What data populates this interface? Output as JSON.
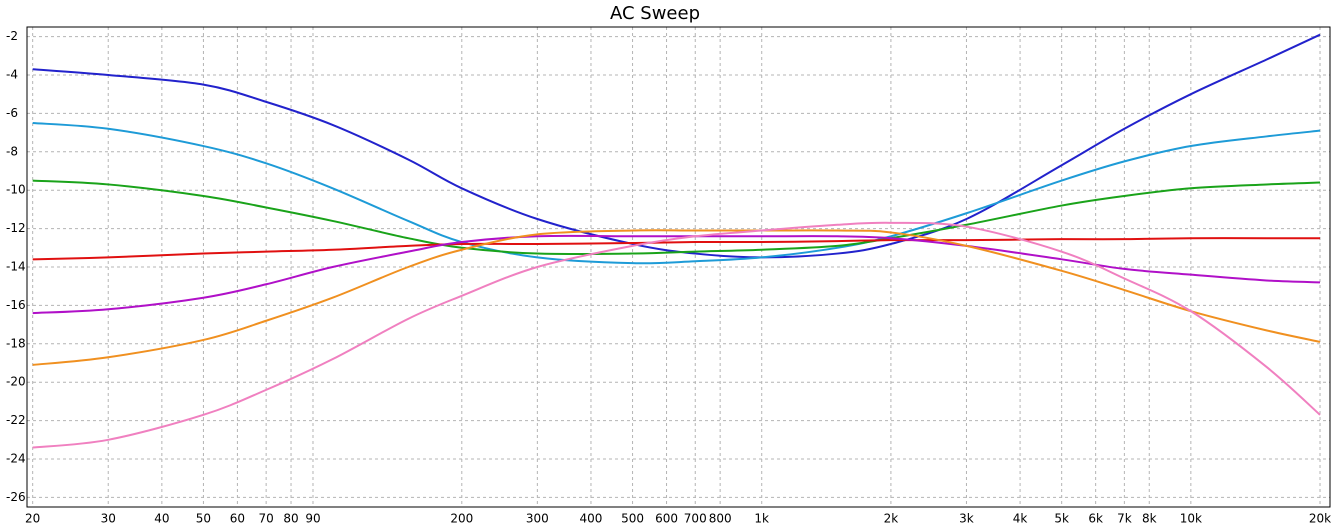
{
  "chart_data": {
    "type": "line",
    "title": "AC Sweep",
    "log_x": true,
    "grid": true,
    "xlim": [
      19.4,
      21100
    ],
    "ylim": [
      -26.5,
      -1.5
    ],
    "xticks": [
      20,
      30,
      40,
      50,
      60,
      70,
      80,
      90,
      200,
      300,
      400,
      500,
      600,
      700,
      800,
      {
        "value": 1000,
        "label": "1k"
      },
      {
        "value": 2000,
        "label": "2k"
      },
      {
        "value": 3000,
        "label": "3k"
      },
      {
        "value": 4000,
        "label": "4k"
      },
      {
        "value": 5000,
        "label": "5k"
      },
      {
        "value": 6000,
        "label": "6k"
      },
      {
        "value": 7000,
        "label": "7k"
      },
      {
        "value": 8000,
        "label": "8k"
      },
      {
        "value": 10000,
        "label": "10k"
      },
      {
        "value": 20000,
        "label": "20k"
      }
    ],
    "yticks": [
      -2,
      -4,
      -6,
      -8,
      -10,
      -12,
      -14,
      -16,
      -18,
      -20,
      -22,
      -24,
      -26
    ],
    "x": [
      20,
      30,
      50,
      70,
      100,
      150,
      200,
      300,
      500,
      700,
      1000,
      1500,
      2000,
      3000,
      5000,
      7000,
      10000,
      15000,
      20000
    ],
    "series": [
      {
        "color": "#2222cc",
        "values": [
          -3.7,
          -4.0,
          -4.5,
          -5.4,
          -6.6,
          -8.4,
          -9.9,
          -11.5,
          -12.8,
          -13.3,
          -13.5,
          -13.3,
          -12.8,
          -11.5,
          -8.7,
          -6.8,
          -5.0,
          -3.2,
          -1.9
        ]
      },
      {
        "color": "#1e9bd7",
        "values": [
          -6.5,
          -6.8,
          -7.7,
          -8.6,
          -9.9,
          -11.6,
          -12.7,
          -13.5,
          -13.8,
          -13.7,
          -13.5,
          -13.0,
          -12.4,
          -11.2,
          -9.5,
          -8.5,
          -7.7,
          -7.2,
          -6.9
        ]
      },
      {
        "color": "#1aa31a",
        "values": [
          -9.5,
          -9.7,
          -10.3,
          -10.9,
          -11.6,
          -12.5,
          -13.0,
          -13.3,
          -13.3,
          -13.2,
          -13.1,
          -12.9,
          -12.5,
          -11.8,
          -10.8,
          -10.3,
          -9.9,
          -9.7,
          -9.6
        ]
      },
      {
        "color": "#e01010",
        "values": [
          -13.6,
          -13.5,
          -13.3,
          -13.2,
          -13.1,
          -12.9,
          -12.8,
          -12.8,
          -12.75,
          -12.7,
          -12.7,
          -12.65,
          -12.6,
          -12.6,
          -12.55,
          -12.55,
          -12.5,
          -12.5,
          -12.5
        ]
      },
      {
        "color": "#b010c8",
        "values": [
          -16.4,
          -16.2,
          -15.6,
          -14.9,
          -14.0,
          -13.2,
          -12.7,
          -12.4,
          -12.4,
          -12.4,
          -12.4,
          -12.4,
          -12.5,
          -12.9,
          -13.6,
          -14.1,
          -14.4,
          -14.7,
          -14.8
        ]
      },
      {
        "color": "#f09020",
        "values": [
          -19.1,
          -18.7,
          -17.8,
          -16.8,
          -15.6,
          -14.0,
          -13.1,
          -12.3,
          -12.1,
          -12.1,
          -12.1,
          -12.1,
          -12.2,
          -12.9,
          -14.2,
          -15.2,
          -16.3,
          -17.3,
          -17.9
        ]
      },
      {
        "color": "#f080c0",
        "values": [
          -23.4,
          -23.0,
          -21.7,
          -20.4,
          -18.8,
          -16.7,
          -15.5,
          -14.0,
          -12.9,
          -12.4,
          -12.1,
          -11.8,
          -11.7,
          -11.9,
          -13.2,
          -14.6,
          -16.3,
          -19.2,
          -21.7
        ]
      }
    ]
  }
}
